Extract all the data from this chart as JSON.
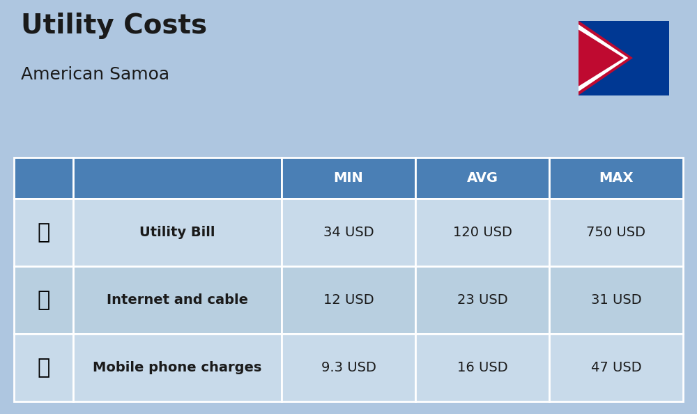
{
  "title": "Utility Costs",
  "subtitle": "American Samoa",
  "background_color": "#aec6e0",
  "header_bg_color": "#4a7fb5",
  "header_text_color": "#ffffff",
  "row_bg_color_1": "#c8daea",
  "row_bg_color_2": "#b8cfe0",
  "table_border_color": "#ffffff",
  "headers": [
    "",
    "",
    "MIN",
    "AVG",
    "MAX"
  ],
  "rows": [
    {
      "label": "Utility Bill",
      "min": "34 USD",
      "avg": "120 USD",
      "max": "750 USD",
      "icon": "utility"
    },
    {
      "label": "Internet and cable",
      "min": "12 USD",
      "avg": "23 USD",
      "max": "31 USD",
      "icon": "internet"
    },
    {
      "label": "Mobile phone charges",
      "min": "9.3 USD",
      "avg": "16 USD",
      "max": "47 USD",
      "icon": "mobile"
    }
  ],
  "title_fontsize": 28,
  "subtitle_fontsize": 18,
  "header_fontsize": 14,
  "cell_fontsize": 14,
  "label_fontsize": 14
}
